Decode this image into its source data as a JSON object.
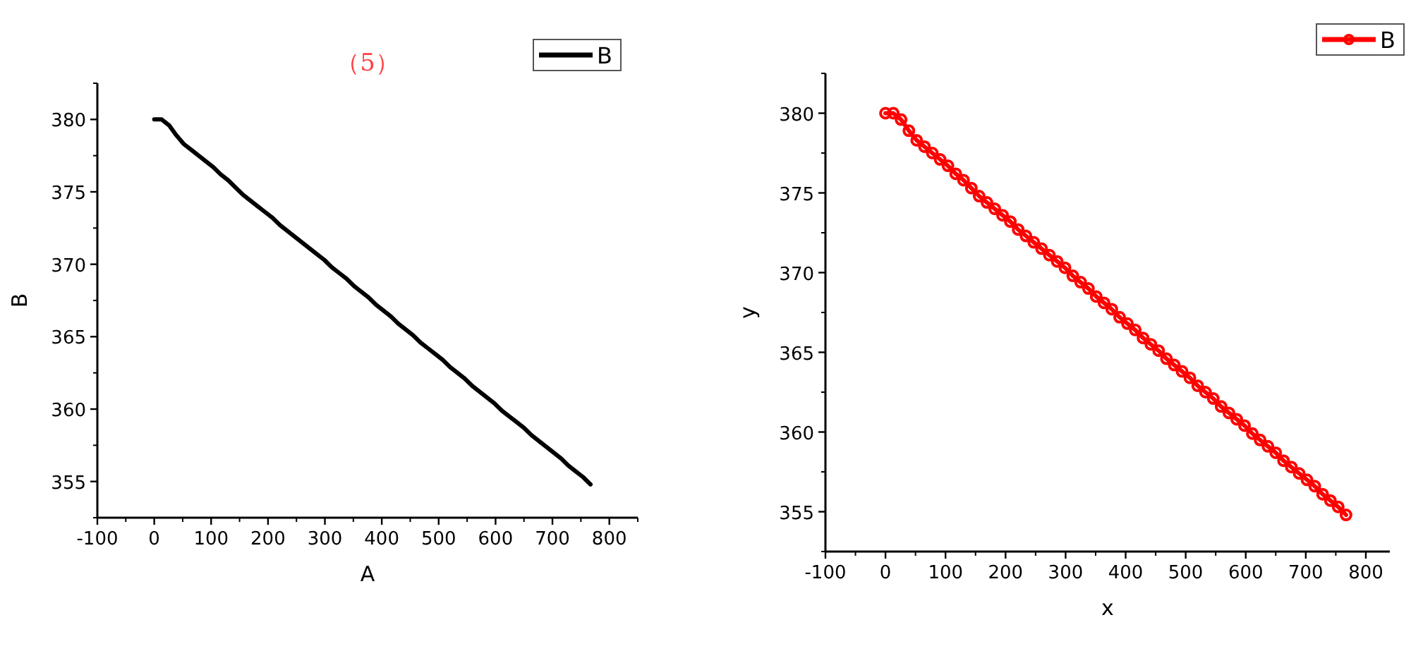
{
  "chart_data": [
    {
      "type": "line",
      "title": "（5）",
      "xlabel": "A",
      "ylabel": "B",
      "xlim": [
        -100,
        850
      ],
      "ylim": [
        352.5,
        382.5
      ],
      "xticks": [
        -100,
        0,
        100,
        200,
        300,
        400,
        500,
        600,
        700,
        800
      ],
      "yticks": [
        355,
        360,
        365,
        370,
        375,
        380
      ],
      "legend": "top right",
      "marker": "none",
      "line_style": "solid",
      "x": [
        0,
        13,
        26,
        39,
        52,
        65,
        78,
        91,
        104,
        117,
        130,
        143,
        156,
        169,
        182,
        195,
        208,
        221,
        234,
        247,
        260,
        273,
        286,
        299,
        312,
        325,
        338,
        351,
        364,
        377,
        390,
        403,
        416,
        429,
        442,
        455,
        468,
        481,
        494,
        507,
        520,
        533,
        546,
        559,
        572,
        585,
        598,
        611,
        624,
        637,
        650,
        663,
        676,
        689,
        702,
        715,
        728,
        741,
        754,
        767
      ],
      "series": [
        {
          "name": "B",
          "color": "#000000",
          "values": [
            380.0,
            380.0,
            379.6,
            378.9,
            378.3,
            377.9,
            377.5,
            377.1,
            376.7,
            376.2,
            375.8,
            375.3,
            374.8,
            374.4,
            374.0,
            373.6,
            373.2,
            372.7,
            372.3,
            371.9,
            371.5,
            371.1,
            370.7,
            370.3,
            369.8,
            369.4,
            369.0,
            368.5,
            368.1,
            367.7,
            367.2,
            366.8,
            366.4,
            365.9,
            365.5,
            365.1,
            364.6,
            364.2,
            363.8,
            363.4,
            362.9,
            362.5,
            362.1,
            361.6,
            361.2,
            360.8,
            360.4,
            359.9,
            359.5,
            359.1,
            358.7,
            358.2,
            357.8,
            357.4,
            357.0,
            356.6,
            356.1,
            355.7,
            355.3,
            354.8
          ]
        }
      ]
    },
    {
      "type": "line",
      "xlabel": "x",
      "ylabel": "y",
      "xlim": [
        -100,
        840
      ],
      "ylim": [
        352.5,
        382.5
      ],
      "xticks": [
        -100,
        0,
        100,
        200,
        300,
        400,
        500,
        600,
        700,
        800
      ],
      "yticks": [
        355,
        360,
        365,
        370,
        375,
        380
      ],
      "legend": "top right",
      "marker": "circle",
      "line_style": "solid",
      "x": [
        0,
        13,
        26,
        39,
        52,
        65,
        78,
        91,
        104,
        117,
        130,
        143,
        156,
        169,
        182,
        195,
        208,
        221,
        234,
        247,
        260,
        273,
        286,
        299,
        312,
        325,
        338,
        351,
        364,
        377,
        390,
        403,
        416,
        429,
        442,
        455,
        468,
        481,
        494,
        507,
        520,
        533,
        546,
        559,
        572,
        585,
        598,
        611,
        624,
        637,
        650,
        663,
        676,
        689,
        702,
        715,
        728,
        741,
        754,
        767
      ],
      "series": [
        {
          "name": "B",
          "color": "#ff0000",
          "values": [
            380.0,
            380.0,
            379.6,
            378.9,
            378.3,
            377.9,
            377.5,
            377.1,
            376.7,
            376.2,
            375.8,
            375.3,
            374.8,
            374.4,
            374.0,
            373.6,
            373.2,
            372.7,
            372.3,
            371.9,
            371.5,
            371.1,
            370.7,
            370.3,
            369.8,
            369.4,
            369.0,
            368.5,
            368.1,
            367.7,
            367.2,
            366.8,
            366.4,
            365.9,
            365.5,
            365.1,
            364.6,
            364.2,
            363.8,
            363.4,
            362.9,
            362.5,
            362.1,
            361.6,
            361.2,
            360.8,
            360.4,
            359.9,
            359.5,
            359.1,
            358.7,
            358.2,
            357.8,
            357.4,
            357.0,
            356.6,
            356.1,
            355.7,
            355.3,
            354.8
          ]
        }
      ]
    }
  ]
}
